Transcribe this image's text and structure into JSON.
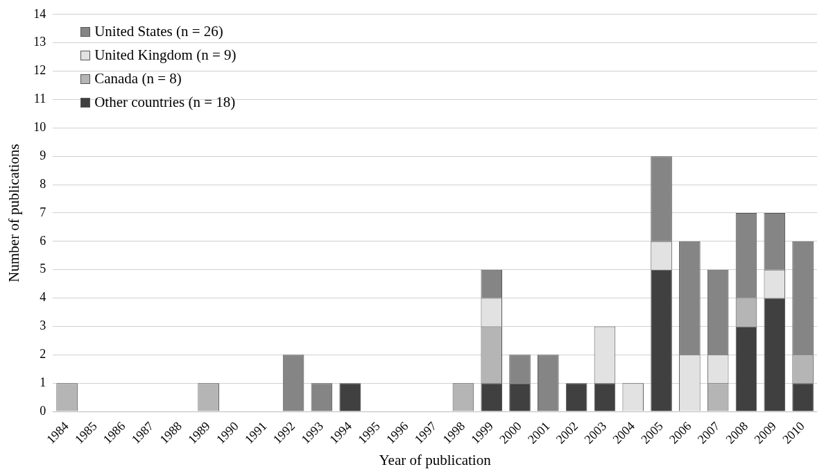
{
  "chart_data": {
    "type": "bar",
    "stacked": true,
    "xlabel": "Year of publication",
    "ylabel": "Number of publications",
    "categories": [
      "1984",
      "1985",
      "1986",
      "1987",
      "1988",
      "1989",
      "1990",
      "1991",
      "1992",
      "1993",
      "1994",
      "1995",
      "1996",
      "1997",
      "1998",
      "1999",
      "2000",
      "2001",
      "2002",
      "2003",
      "2004",
      "2005",
      "2006",
      "2007",
      "2008",
      "2009",
      "2010"
    ],
    "series": [
      {
        "name": "Other countries (n = 18)",
        "color": "#404040",
        "values": [
          0,
          0,
          0,
          0,
          0,
          0,
          0,
          0,
          0,
          0,
          1,
          0,
          0,
          0,
          0,
          1,
          1,
          0,
          1,
          1,
          0,
          5,
          0,
          0,
          3,
          4,
          1
        ]
      },
      {
        "name": "Canada (n = 8)",
        "color": "#b5b5b5",
        "values": [
          1,
          0,
          0,
          0,
          0,
          1,
          0,
          0,
          0,
          0,
          0,
          0,
          0,
          0,
          1,
          2,
          0,
          0,
          0,
          0,
          0,
          0,
          0,
          1,
          1,
          0,
          1
        ]
      },
      {
        "name": "United Kingdom (n = 9)",
        "color": "#e2e2e2",
        "values": [
          0,
          0,
          0,
          0,
          0,
          0,
          0,
          0,
          0,
          0,
          0,
          0,
          0,
          0,
          0,
          1,
          0,
          0,
          0,
          2,
          1,
          1,
          2,
          1,
          0,
          1,
          0
        ]
      },
      {
        "name": "United States (n = 26)",
        "color": "#858585",
        "values": [
          0,
          0,
          0,
          0,
          0,
          0,
          0,
          0,
          2,
          1,
          0,
          0,
          0,
          0,
          0,
          1,
          1,
          2,
          0,
          0,
          0,
          3,
          4,
          3,
          3,
          2,
          4
        ]
      }
    ],
    "ylim": [
      0,
      14
    ],
    "yticks": [
      0,
      1,
      2,
      3,
      4,
      5,
      6,
      7,
      8,
      9,
      10,
      11,
      12,
      13,
      14
    ],
    "grid": "y",
    "legend": "top left"
  }
}
